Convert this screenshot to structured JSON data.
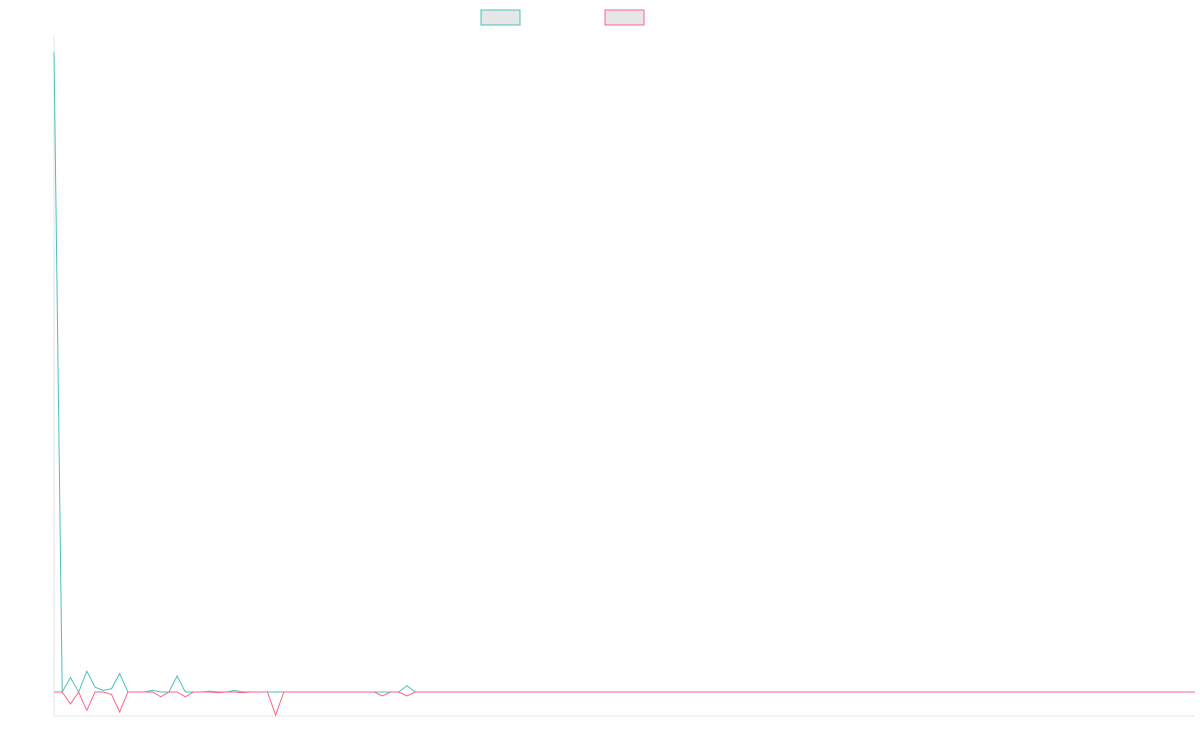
{
  "chart_data": {
    "type": "line",
    "title": "",
    "xlabel": "",
    "ylabel": "",
    "legend_placement": "top-center",
    "grid": false,
    "ylim": [
      -3,
      82
    ],
    "x": [
      0,
      1,
      2,
      3,
      4,
      5,
      6,
      7,
      8,
      9,
      10,
      11,
      12,
      13,
      14,
      15,
      16,
      17,
      18,
      19,
      20,
      21,
      22,
      23,
      24,
      25,
      26,
      27,
      28,
      29,
      30,
      31,
      32,
      33,
      34,
      35,
      36,
      37,
      38,
      39,
      40,
      41,
      42,
      43,
      44,
      45,
      46,
      47,
      48,
      49,
      50,
      51,
      52,
      53,
      54,
      55,
      56,
      57,
      58,
      59,
      60,
      61,
      62,
      63,
      64,
      65,
      66,
      67,
      68,
      69,
      70,
      71,
      72,
      73,
      74,
      75,
      76,
      77,
      78,
      79,
      80,
      81,
      82,
      83,
      84,
      85,
      86,
      87,
      88,
      89,
      90,
      91,
      92,
      93,
      94,
      95,
      96,
      97,
      98,
      99,
      100,
      101,
      102,
      103,
      104,
      105,
      106,
      107,
      108,
      109,
      110,
      111,
      112,
      113,
      114,
      115,
      116,
      117,
      118,
      119,
      120,
      121,
      122,
      123,
      124,
      125,
      126,
      127,
      128,
      129,
      130,
      131,
      132,
      133,
      134,
      135,
      136,
      137,
      138,
      139
    ],
    "series": [
      {
        "color": "#4bc0c0",
        "values": [
          80,
          0,
          1.8,
          0,
          2.6,
          0.6,
          0.2,
          0.4,
          2.3,
          0,
          0,
          0,
          0.2,
          0,
          0,
          2,
          0,
          0,
          0,
          0.1,
          0,
          0,
          0.2,
          0,
          0,
          0,
          0,
          0,
          0,
          0,
          0,
          0,
          0,
          0,
          0,
          0,
          0,
          0,
          0,
          0,
          0,
          0,
          0,
          0.8,
          0,
          0,
          0,
          0,
          0,
          0,
          0,
          0,
          0,
          0,
          0,
          0,
          0,
          0,
          0,
          0,
          0,
          0,
          0,
          0,
          0,
          0,
          0,
          0,
          0,
          0,
          0,
          0,
          0,
          0,
          0,
          0,
          0,
          0,
          0,
          0,
          0,
          0,
          0,
          0,
          0,
          0,
          0,
          0,
          0,
          0,
          0,
          0,
          0,
          0,
          0,
          0,
          0,
          0,
          0,
          0,
          0,
          0,
          0,
          0,
          0,
          0,
          0,
          0,
          0,
          0,
          0,
          0,
          0,
          0,
          0,
          0,
          0,
          0,
          0,
          0,
          0,
          0,
          0,
          0,
          0,
          0,
          0,
          0,
          0,
          0,
          0,
          0,
          0,
          0,
          0,
          0,
          0,
          0,
          0,
          0
        ]
      },
      {
        "color": "#ff6384",
        "values": [
          0,
          0,
          -1.5,
          0,
          -2.3,
          0,
          0,
          -0.3,
          -2.5,
          0,
          0,
          0,
          0,
          -0.6,
          0,
          0,
          -0.6,
          0,
          0,
          0,
          -0.1,
          0,
          0,
          -0.1,
          0,
          0,
          0,
          -2.9,
          0,
          0,
          0,
          0,
          0,
          0,
          0,
          0,
          0,
          0,
          0,
          0,
          -0.5,
          0,
          0,
          -0.5,
          0,
          0,
          0,
          0,
          0,
          0,
          0,
          0,
          0,
          0,
          0,
          0,
          0,
          0,
          0,
          0,
          0,
          0,
          0,
          0,
          0,
          0,
          0,
          0,
          0,
          0,
          0,
          0,
          0,
          0,
          0,
          0,
          0,
          0,
          0,
          0,
          0,
          0,
          0,
          0,
          0,
          0,
          0,
          0,
          0,
          0,
          0,
          0,
          0,
          0,
          0,
          0,
          0,
          0,
          0,
          0,
          0,
          0,
          0,
          0,
          0,
          0,
          0,
          0,
          0,
          0,
          0,
          0,
          0,
          0,
          0,
          0,
          0,
          0,
          0,
          0,
          0,
          0,
          0,
          0,
          0,
          0,
          0,
          0,
          0,
          0,
          0,
          0,
          0,
          0,
          0,
          0,
          0,
          0,
          0,
          0
        ]
      }
    ]
  }
}
